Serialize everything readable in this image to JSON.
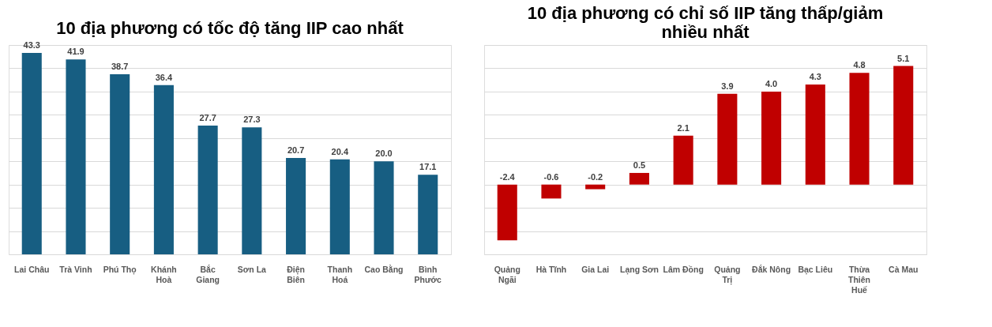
{
  "chart_data": [
    {
      "type": "bar",
      "title": "10 địa phương có tốc độ tăng IIP cao nhất",
      "categories": [
        "Lai Châu",
        "Trà Vinh",
        "Phú Thọ",
        "Khánh Hoà",
        "Bắc Giang",
        "Sơn La",
        "Điện Biên",
        "Thanh Hoá",
        "Cao Bằng",
        "Bình Phước"
      ],
      "values": [
        43.3,
        41.9,
        38.7,
        36.4,
        27.7,
        27.3,
        20.7,
        20.4,
        20.0,
        17.1
      ],
      "color": "#175e82",
      "value_labels": [
        "43.3",
        "41.9",
        "38.7",
        "36.4",
        "27.7",
        "27.3",
        "20.7",
        "20.4",
        "20.0",
        "17.1"
      ],
      "grid": "y",
      "tick_labels": "x"
    },
    {
      "type": "bar",
      "title": "10 địa phương có chỉ số IIP tăng thấp/giảm nhiều nhất",
      "categories": [
        "Quảng Ngãi",
        "Hà Tĩnh",
        "Gia Lai",
        "Lạng Sơn",
        "Lâm Đồng",
        "Quảng Trị",
        "Đắk Nông",
        "Bạc Liêu",
        "Thừa Thiên Huế",
        "Cà Mau"
      ],
      "values": [
        -2.4,
        -0.6,
        -0.2,
        0.5,
        2.1,
        3.9,
        4.0,
        4.3,
        4.8,
        5.1
      ],
      "color": "#c00000",
      "value_labels": [
        "-2.4",
        "-0.6",
        "-0.2",
        "0.5",
        "2.1",
        "3.9",
        "4.0",
        "4.3",
        "4.8",
        "5.1"
      ],
      "grid": "y",
      "tick_labels": "x"
    }
  ]
}
